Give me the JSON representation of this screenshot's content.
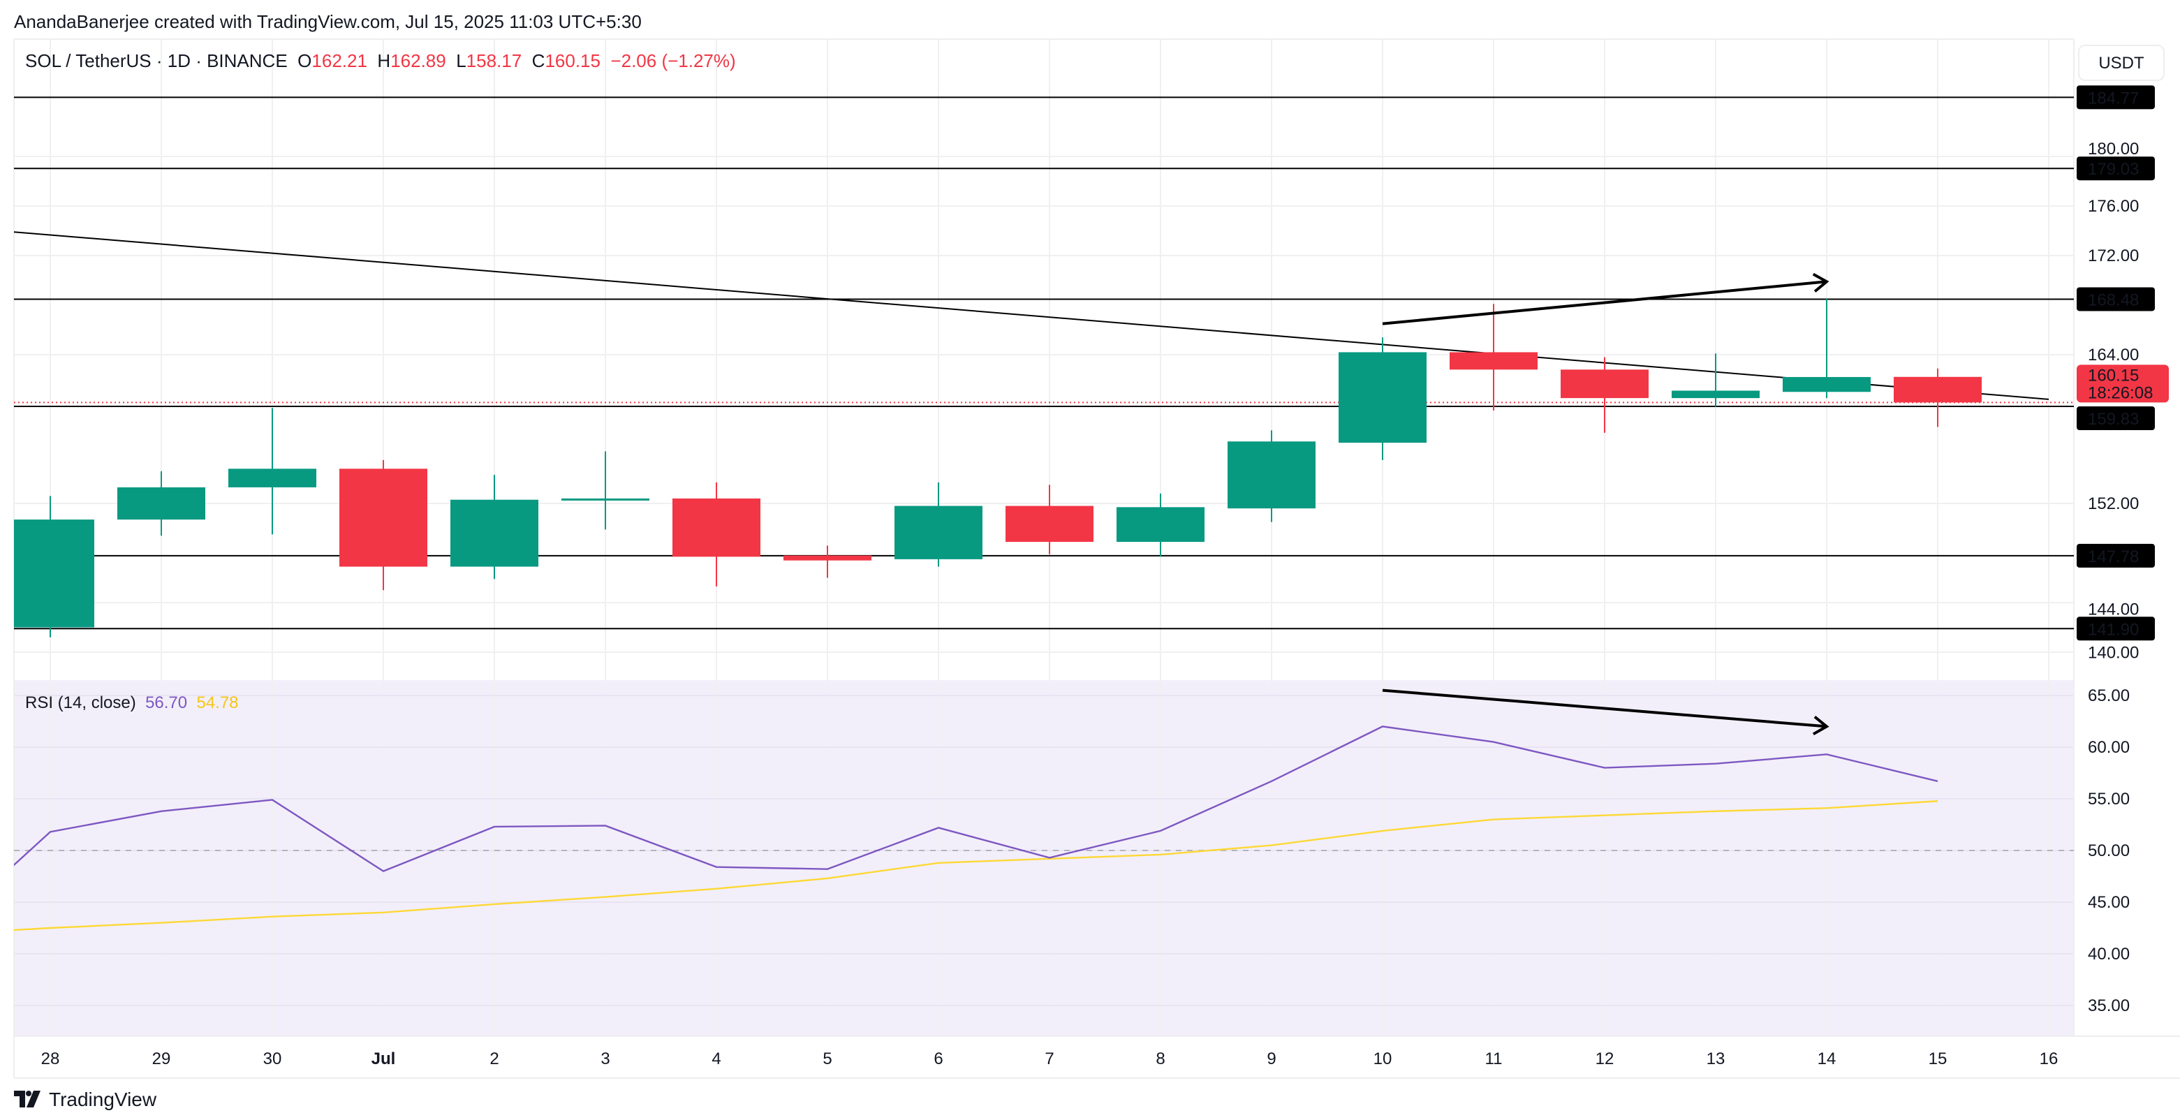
{
  "credit": "AnandaBanerjee created with TradingView.com, Jul 15, 2025 11:03 UTC+5:30",
  "legend": {
    "symbol": "SOL / TetherUS · 1D · BINANCE",
    "o_label": "O",
    "o": "162.21",
    "h_label": "H",
    "h": "162.89",
    "l_label": "L",
    "l": "158.17",
    "c_label": "C",
    "c": "160.15",
    "change": "−2.06 (−1.27%)"
  },
  "currency": "USDT",
  "rsi_legend": {
    "label": "RSI (14, close)",
    "rsi": "56.70",
    "ma": "54.78"
  },
  "footer": {
    "brand": "TradingView"
  },
  "colors": {
    "up": "#089981",
    "down": "#f23645",
    "rsi": "#7e57c2",
    "rsi_ma": "#fdd835",
    "rsi_bg": "#f2effa",
    "line": "#000000"
  },
  "chart_data": [
    {
      "type": "candlestick",
      "title": "SOL / TetherUS · 1D · BINANCE",
      "x_tick_labels": [
        "28",
        "29",
        "30",
        "Jul",
        "2",
        "3",
        "4",
        "5",
        "6",
        "7",
        "8",
        "9",
        "10",
        "11",
        "12",
        "13",
        "14",
        "15",
        "16"
      ],
      "y_tick_labels": [
        "140.00",
        "144.00",
        "152.00",
        "164.00",
        "172.00",
        "176.00",
        "180.00"
      ],
      "ylim": [
        138,
        190
      ],
      "candles": [
        {
          "date": "Jun 28",
          "o": 142.0,
          "h": 152.6,
          "l": 141.2,
          "c": 150.7
        },
        {
          "date": "Jun 29",
          "o": 150.7,
          "h": 154.6,
          "l": 149.4,
          "c": 153.3
        },
        {
          "date": "Jun 30",
          "o": 153.3,
          "h": 159.7,
          "l": 149.5,
          "c": 154.8
        },
        {
          "date": "Jul 1",
          "o": 154.8,
          "h": 155.5,
          "l": 145.0,
          "c": 146.9
        },
        {
          "date": "Jul 2",
          "o": 146.9,
          "h": 154.3,
          "l": 145.9,
          "c": 152.3
        },
        {
          "date": "Jul 3",
          "o": 152.3,
          "h": 156.2,
          "l": 149.9,
          "c": 152.4
        },
        {
          "date": "Jul 4",
          "o": 152.4,
          "h": 153.7,
          "l": 145.3,
          "c": 147.7
        },
        {
          "date": "Jul 5",
          "o": 147.8,
          "h": 148.6,
          "l": 146.0,
          "c": 147.4
        },
        {
          "date": "Jul 6",
          "o": 147.5,
          "h": 153.7,
          "l": 146.9,
          "c": 151.8
        },
        {
          "date": "Jul 7",
          "o": 151.8,
          "h": 153.5,
          "l": 147.9,
          "c": 148.9
        },
        {
          "date": "Jul 8",
          "o": 148.9,
          "h": 152.8,
          "l": 147.7,
          "c": 151.7
        },
        {
          "date": "Jul 9",
          "o": 151.6,
          "h": 157.9,
          "l": 150.5,
          "c": 157.0
        },
        {
          "date": "Jul 10",
          "o": 156.9,
          "h": 165.4,
          "l": 155.5,
          "c": 164.2
        },
        {
          "date": "Jul 11",
          "o": 164.2,
          "h": 168.1,
          "l": 159.5,
          "c": 162.8
        },
        {
          "date": "Jul 12",
          "o": 162.8,
          "h": 163.8,
          "l": 157.7,
          "c": 160.5
        },
        {
          "date": "Jul 13",
          "o": 160.5,
          "h": 164.1,
          "l": 159.8,
          "c": 161.1
        },
        {
          "date": "Jul 14",
          "o": 161.0,
          "h": 168.5,
          "l": 160.5,
          "c": 162.2
        },
        {
          "date": "Jul 15",
          "o": 162.21,
          "h": 162.89,
          "l": 158.17,
          "c": 160.15
        }
      ],
      "horizontal_levels": [
        "184.77",
        "179.03",
        "168.48",
        "159.83",
        "147.78",
        "141.90"
      ],
      "last_price": "160.15",
      "countdown": "18:26:08",
      "trendline": {
        "from": {
          "date": "Jun 27",
          "price": 174.4
        },
        "to": {
          "date": "Jul 16",
          "price": 160.4
        }
      },
      "arrow": {
        "from": {
          "date": "Jul 10",
          "price": 166.5
        },
        "to": {
          "date": "Jul 14",
          "price": 169.9
        }
      }
    },
    {
      "type": "line",
      "title": "RSI (14, close)",
      "y_tick_labels": [
        "35.00",
        "40.00",
        "45.00",
        "50.00",
        "55.00",
        "60.00",
        "65.00"
      ],
      "ylim": [
        32,
        66.5
      ],
      "dates": [
        "Jun 27",
        "Jun 28",
        "Jun 29",
        "Jun 30",
        "Jul 1",
        "Jul 2",
        "Jul 3",
        "Jul 4",
        "Jul 5",
        "Jul 6",
        "Jul 7",
        "Jul 8",
        "Jul 9",
        "Jul 10",
        "Jul 11",
        "Jul 12",
        "Jul 13",
        "Jul 14",
        "Jul 15"
      ],
      "series": [
        {
          "name": "RSI",
          "values": [
            42.0,
            51.8,
            53.8,
            54.9,
            48.0,
            52.3,
            52.4,
            48.4,
            48.2,
            52.2,
            49.3,
            51.9,
            56.7,
            62.0,
            60.5,
            58.0,
            58.4,
            59.3,
            56.7
          ]
        },
        {
          "name": "RSI MA",
          "values": [
            41.9,
            42.5,
            43.0,
            43.6,
            44.0,
            44.8,
            45.5,
            46.3,
            47.3,
            48.8,
            49.2,
            49.6,
            50.5,
            51.9,
            53.0,
            53.4,
            53.8,
            54.1,
            54.78
          ]
        }
      ],
      "midline": 50,
      "arrow": {
        "from": {
          "date": "Jul 10",
          "rsi": 65.5
        },
        "to": {
          "date": "Jul 14",
          "rsi": 62.0
        }
      }
    }
  ]
}
